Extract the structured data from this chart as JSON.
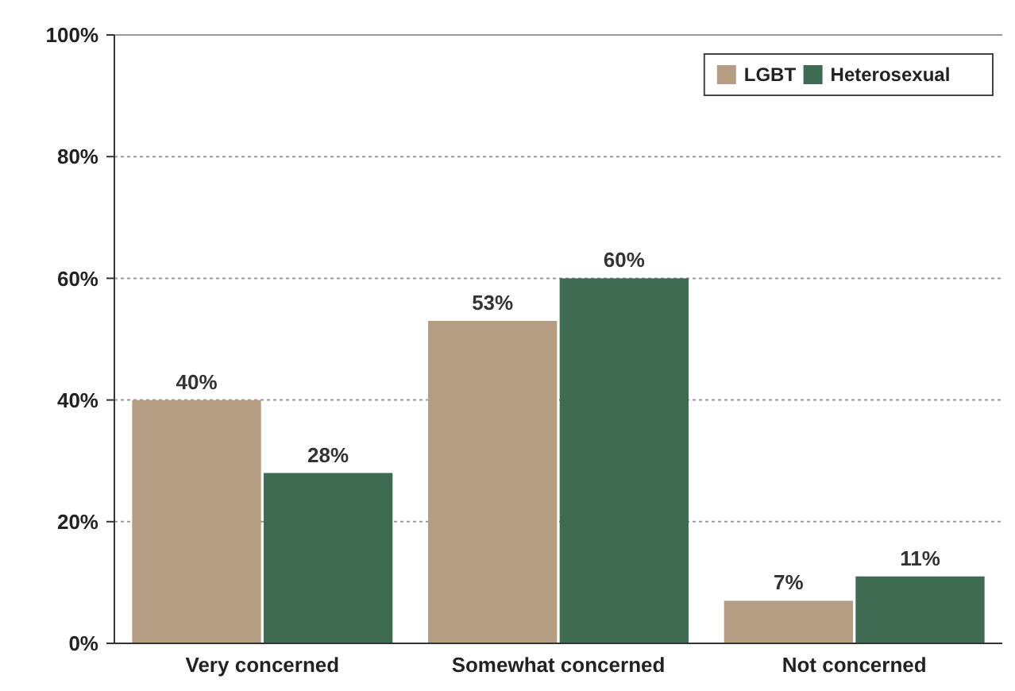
{
  "chart_data": {
    "type": "bar",
    "categories": [
      "Very concerned",
      "Somewhat concerned",
      "Not concerned"
    ],
    "series": [
      {
        "name": "LGBT",
        "color": "#b59d84",
        "values": [
          40,
          53,
          7
        ],
        "value_labels": [
          "40%",
          "53%",
          "7%"
        ]
      },
      {
        "name": "Heterosexual",
        "color": "#3f6b52",
        "values": [
          28,
          60,
          11
        ],
        "value_labels": [
          "28%",
          "60%",
          "11%"
        ]
      }
    ],
    "ylim": [
      0,
      100
    ],
    "yticks": [
      {
        "value": 0,
        "label": "0%"
      },
      {
        "value": 20,
        "label": "20%"
      },
      {
        "value": 40,
        "label": "40%"
      },
      {
        "value": 60,
        "label": "60%"
      },
      {
        "value": 80,
        "label": "80%"
      },
      {
        "value": 100,
        "label": "100%"
      }
    ],
    "grid": "y",
    "legend": "top right"
  }
}
